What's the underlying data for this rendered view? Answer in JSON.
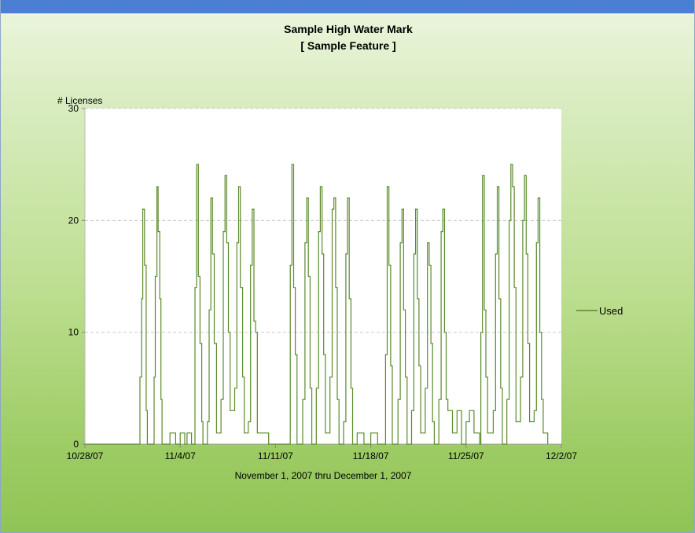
{
  "colors": {
    "window_bar": "#4a7fd4",
    "series": "#5a8a2a",
    "grid": "#cccccc",
    "plot_background": "#ffffff"
  },
  "chart_data": {
    "type": "line",
    "title": "Sample High Water Mark",
    "subtitle": "[ Sample Feature ]",
    "ylabel": "# Licenses",
    "xlabel": "November 1, 2007 thru December 1, 2007",
    "ylim": [
      0,
      30
    ],
    "yticks": [
      0,
      10,
      20,
      30
    ],
    "xlim": [
      "2007-10-28",
      "2007-12-02"
    ],
    "xticks": [
      "10/28/07",
      "11/4/07",
      "11/11/07",
      "11/18/07",
      "11/25/07",
      "12/2/07"
    ],
    "grid": "horizontal dashed",
    "legend_position": "right",
    "series": [
      {
        "name": "Used",
        "color": "#5a8a2a",
        "step": true,
        "points": [
          [
            "2007-10-28T00:00",
            0
          ],
          [
            "2007-11-01T00:00",
            0
          ],
          [
            "2007-11-01T01:00",
            6
          ],
          [
            "2007-11-01T04:00",
            13
          ],
          [
            "2007-11-01T06:00",
            21
          ],
          [
            "2007-11-01T09:00",
            16
          ],
          [
            "2007-11-01T12:00",
            3
          ],
          [
            "2007-11-01T14:00",
            0
          ],
          [
            "2007-11-02T00:00",
            0
          ],
          [
            "2007-11-02T02:00",
            6
          ],
          [
            "2007-11-02T04:00",
            15
          ],
          [
            "2007-11-02T07:00",
            23
          ],
          [
            "2007-11-02T09:00",
            19
          ],
          [
            "2007-11-02T12:00",
            13
          ],
          [
            "2007-11-02T14:00",
            4
          ],
          [
            "2007-11-02T16:00",
            0
          ],
          [
            "2007-11-03T00:00",
            0
          ],
          [
            "2007-11-03T06:00",
            1
          ],
          [
            "2007-11-03T16:00",
            0
          ],
          [
            "2007-11-04T00:00",
            1
          ],
          [
            "2007-11-04T08:00",
            0
          ],
          [
            "2007-11-04T12:00",
            1
          ],
          [
            "2007-11-04T20:00",
            0
          ],
          [
            "2007-11-05T00:00",
            0
          ],
          [
            "2007-11-05T02:00",
            14
          ],
          [
            "2007-11-05T05:00",
            25
          ],
          [
            "2007-11-05T08:00",
            15
          ],
          [
            "2007-11-05T11:00",
            9
          ],
          [
            "2007-11-05T14:00",
            2
          ],
          [
            "2007-11-05T16:00",
            0
          ],
          [
            "2007-11-06T00:00",
            2
          ],
          [
            "2007-11-06T03:00",
            12
          ],
          [
            "2007-11-06T06:00",
            22
          ],
          [
            "2007-11-06T09:00",
            17
          ],
          [
            "2007-11-06T12:00",
            9
          ],
          [
            "2007-11-06T16:00",
            1
          ],
          [
            "2007-11-07T00:00",
            4
          ],
          [
            "2007-11-07T04:00",
            19
          ],
          [
            "2007-11-07T07:00",
            24
          ],
          [
            "2007-11-07T10:00",
            18
          ],
          [
            "2007-11-07T13:00",
            10
          ],
          [
            "2007-11-07T16:00",
            3
          ],
          [
            "2007-11-08T00:00",
            5
          ],
          [
            "2007-11-08T04:00",
            18
          ],
          [
            "2007-11-08T07:00",
            23
          ],
          [
            "2007-11-08T10:00",
            14
          ],
          [
            "2007-11-08T14:00",
            6
          ],
          [
            "2007-11-08T17:00",
            1
          ],
          [
            "2007-11-09T00:00",
            2
          ],
          [
            "2007-11-09T04:00",
            16
          ],
          [
            "2007-11-09T07:00",
            21
          ],
          [
            "2007-11-09T10:00",
            11
          ],
          [
            "2007-11-09T13:00",
            10
          ],
          [
            "2007-11-09T16:00",
            1
          ],
          [
            "2007-11-10T00:00",
            1
          ],
          [
            "2007-11-10T12:00",
            0
          ],
          [
            "2007-11-11T00:00",
            0
          ],
          [
            "2007-11-12T00:00",
            0
          ],
          [
            "2007-11-12T02:00",
            16
          ],
          [
            "2007-11-12T05:00",
            25
          ],
          [
            "2007-11-12T08:00",
            14
          ],
          [
            "2007-11-12T11:00",
            8
          ],
          [
            "2007-11-12T14:00",
            0
          ],
          [
            "2007-11-13T00:00",
            4
          ],
          [
            "2007-11-13T04:00",
            18
          ],
          [
            "2007-11-13T07:00",
            22
          ],
          [
            "2007-11-13T10:00",
            15
          ],
          [
            "2007-11-13T13:00",
            5
          ],
          [
            "2007-11-13T16:00",
            0
          ],
          [
            "2007-11-14T00:00",
            5
          ],
          [
            "2007-11-14T04:00",
            19
          ],
          [
            "2007-11-14T07:00",
            23
          ],
          [
            "2007-11-14T10:00",
            17
          ],
          [
            "2007-11-14T13:00",
            8
          ],
          [
            "2007-11-14T16:00",
            1
          ],
          [
            "2007-11-15T00:00",
            6
          ],
          [
            "2007-11-15T04:00",
            21
          ],
          [
            "2007-11-15T07:00",
            22
          ],
          [
            "2007-11-15T10:00",
            14
          ],
          [
            "2007-11-15T13:00",
            4
          ],
          [
            "2007-11-15T16:00",
            0
          ],
          [
            "2007-11-16T00:00",
            2
          ],
          [
            "2007-11-16T04:00",
            17
          ],
          [
            "2007-11-16T07:00",
            22
          ],
          [
            "2007-11-16T10:00",
            13
          ],
          [
            "2007-11-16T13:00",
            5
          ],
          [
            "2007-11-16T16:00",
            0
          ],
          [
            "2007-11-17T00:00",
            1
          ],
          [
            "2007-11-17T12:00",
            0
          ],
          [
            "2007-11-18T00:00",
            1
          ],
          [
            "2007-11-18T12:00",
            0
          ],
          [
            "2007-11-19T00:00",
            0
          ],
          [
            "2007-11-19T02:00",
            8
          ],
          [
            "2007-11-19T05:00",
            23
          ],
          [
            "2007-11-19T08:00",
            16
          ],
          [
            "2007-11-19T11:00",
            7
          ],
          [
            "2007-11-19T14:00",
            0
          ],
          [
            "2007-11-20T00:00",
            4
          ],
          [
            "2007-11-20T04:00",
            18
          ],
          [
            "2007-11-20T07:00",
            21
          ],
          [
            "2007-11-20T10:00",
            12
          ],
          [
            "2007-11-20T13:00",
            6
          ],
          [
            "2007-11-20T16:00",
            0
          ],
          [
            "2007-11-21T00:00",
            3
          ],
          [
            "2007-11-21T04:00",
            17
          ],
          [
            "2007-11-21T07:00",
            21
          ],
          [
            "2007-11-21T10:00",
            13
          ],
          [
            "2007-11-21T13:00",
            7
          ],
          [
            "2007-11-21T16:00",
            1
          ],
          [
            "2007-11-22T00:00",
            5
          ],
          [
            "2007-11-22T04:00",
            18
          ],
          [
            "2007-11-22T07:00",
            16
          ],
          [
            "2007-11-22T10:00",
            9
          ],
          [
            "2007-11-22T13:00",
            2
          ],
          [
            "2007-11-22T16:00",
            0
          ],
          [
            "2007-11-23T00:00",
            4
          ],
          [
            "2007-11-23T04:00",
            19
          ],
          [
            "2007-11-23T07:00",
            21
          ],
          [
            "2007-11-23T10:00",
            10
          ],
          [
            "2007-11-23T13:00",
            4
          ],
          [
            "2007-11-23T16:00",
            3
          ],
          [
            "2007-11-24T00:00",
            1
          ],
          [
            "2007-11-24T08:00",
            3
          ],
          [
            "2007-11-24T16:00",
            0
          ],
          [
            "2007-11-25T00:00",
            2
          ],
          [
            "2007-11-25T06:00",
            3
          ],
          [
            "2007-11-25T14:00",
            1
          ],
          [
            "2007-11-26T00:00",
            0
          ],
          [
            "2007-11-26T02:00",
            10
          ],
          [
            "2007-11-26T05:00",
            24
          ],
          [
            "2007-11-26T08:00",
            12
          ],
          [
            "2007-11-26T11:00",
            6
          ],
          [
            "2007-11-26T14:00",
            1
          ],
          [
            "2007-11-27T00:00",
            3
          ],
          [
            "2007-11-27T04:00",
            17
          ],
          [
            "2007-11-27T07:00",
            23
          ],
          [
            "2007-11-27T10:00",
            13
          ],
          [
            "2007-11-27T13:00",
            5
          ],
          [
            "2007-11-27T16:00",
            0
          ],
          [
            "2007-11-28T00:00",
            4
          ],
          [
            "2007-11-28T04:00",
            20
          ],
          [
            "2007-11-28T07:00",
            25
          ],
          [
            "2007-11-28T10:00",
            23
          ],
          [
            "2007-11-28T13:00",
            14
          ],
          [
            "2007-11-28T16:00",
            2
          ],
          [
            "2007-11-29T00:00",
            6
          ],
          [
            "2007-11-29T04:00",
            20
          ],
          [
            "2007-11-29T07:00",
            24
          ],
          [
            "2007-11-29T10:00",
            17
          ],
          [
            "2007-11-29T13:00",
            9
          ],
          [
            "2007-11-29T16:00",
            2
          ],
          [
            "2007-11-30T00:00",
            3
          ],
          [
            "2007-11-30T04:00",
            18
          ],
          [
            "2007-11-30T07:00",
            22
          ],
          [
            "2007-11-30T10:00",
            10
          ],
          [
            "2007-11-30T13:00",
            4
          ],
          [
            "2007-11-30T16:00",
            1
          ],
          [
            "2007-12-01T00:00",
            0
          ]
        ]
      }
    ]
  }
}
